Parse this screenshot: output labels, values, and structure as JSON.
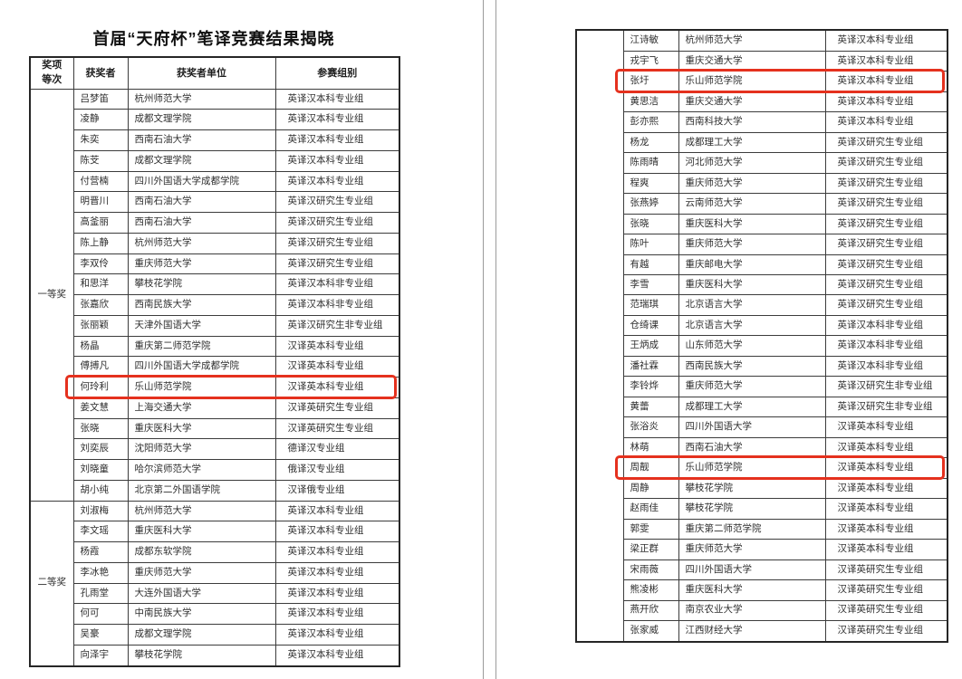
{
  "highlight_color": "#e5311e",
  "page1": {
    "title": "首届“天府杯”笔译竞赛结果揭晓",
    "headers": {
      "award": "奖项\n等次",
      "winner": "获奖者",
      "org": "获奖者单位",
      "group": "参赛组别"
    },
    "sections": [
      {
        "award": "一等奖",
        "rows": [
          {
            "name": "吕梦笛",
            "org": "杭州师范大学",
            "group": "英译汉本科专业组"
          },
          {
            "name": "凌静",
            "org": "成都文理学院",
            "group": "英译汉本科专业组"
          },
          {
            "name": "朱奕",
            "org": "西南石油大学",
            "group": "英译汉本科专业组"
          },
          {
            "name": "陈芠",
            "org": "成都文理学院",
            "group": "英译汉本科专业组"
          },
          {
            "name": "付营楠",
            "org": "四川外国语大学成都学院",
            "group": "英译汉本科专业组"
          },
          {
            "name": "明晋川",
            "org": "西南石油大学",
            "group": "英译汉研究生专业组"
          },
          {
            "name": "高釜丽",
            "org": "西南石油大学",
            "group": "英译汉研究生专业组"
          },
          {
            "name": "陈上静",
            "org": "杭州师范大学",
            "group": "英译汉研究生专业组"
          },
          {
            "name": "李双伶",
            "org": "重庆师范大学",
            "group": "英译汉研究生专业组"
          },
          {
            "name": "和思洋",
            "org": "攀枝花学院",
            "group": "英译汉本科非专业组"
          },
          {
            "name": "张嘉欣",
            "org": "西南民族大学",
            "group": "英译汉本科非专业组"
          },
          {
            "name": "张丽颖",
            "org": "天津外国语大学",
            "group": "英译汉研究生非专业组"
          },
          {
            "name": "杨晶",
            "org": "重庆第二师范学院",
            "group": "汉译英本科专业组"
          },
          {
            "name": "傅搏凡",
            "org": "四川外国语大学成都学院",
            "group": "汉译英本科专业组"
          },
          {
            "name": "何玲利",
            "org": "乐山师范学院",
            "group": "汉译英本科专业组",
            "highlight": true
          },
          {
            "name": "姜文慧",
            "org": "上海交通大学",
            "group": "汉译英研究生专业组"
          },
          {
            "name": "张晓",
            "org": "重庆医科大学",
            "group": "汉译英研究生专业组"
          },
          {
            "name": "刘奕辰",
            "org": "沈阳师范大学",
            "group": "德译汉专业组"
          },
          {
            "name": "刘晓童",
            "org": "哈尔滨师范大学",
            "group": "俄译汉专业组"
          },
          {
            "name": "胡小纯",
            "org": "北京第二外国语学院",
            "group": "汉译俄专业组"
          }
        ]
      },
      {
        "award": "二等奖",
        "rows": [
          {
            "name": "刘淑梅",
            "org": "杭州师范大学",
            "group": "英译汉本科专业组"
          },
          {
            "name": "李文瑶",
            "org": "重庆医科大学",
            "group": "英译汉本科专业组"
          },
          {
            "name": "杨霞",
            "org": "成都东软学院",
            "group": "英译汉本科专业组"
          },
          {
            "name": "李冰艳",
            "org": "重庆师范大学",
            "group": "英译汉本科专业组"
          },
          {
            "name": "孔雨堂",
            "org": "大连外国语大学",
            "group": "英译汉本科专业组"
          },
          {
            "name": "何可",
            "org": "中南民族大学",
            "group": "英译汉本科专业组"
          },
          {
            "name": "吴豪",
            "org": "成都文理学院",
            "group": "英译汉本科专业组"
          },
          {
            "name": "向泽宇",
            "org": "攀枝花学院",
            "group": "英译汉本科专业组"
          }
        ]
      }
    ]
  },
  "page2": {
    "sections": [
      {
        "award": "",
        "rows": [
          {
            "name": "江诗敏",
            "org": "杭州师范大学",
            "group": "英译汉本科专业组"
          },
          {
            "name": "戎宇飞",
            "org": "重庆交通大学",
            "group": "英译汉本科专业组"
          },
          {
            "name": "张圩",
            "org": "乐山师范学院",
            "group": "英译汉本科专业组",
            "highlight": true
          },
          {
            "name": "黄思洁",
            "org": "重庆交通大学",
            "group": "英译汉本科专业组"
          },
          {
            "name": "彭亦熙",
            "org": "西南科技大学",
            "group": "英译汉本科专业组"
          },
          {
            "name": "杨龙",
            "org": "成都理工大学",
            "group": "英译汉研究生专业组"
          },
          {
            "name": "陈雨晴",
            "org": "河北师范大学",
            "group": "英译汉研究生专业组"
          },
          {
            "name": "程爽",
            "org": "重庆师范大学",
            "group": "英译汉研究生专业组"
          },
          {
            "name": "张燕婷",
            "org": "云南师范大学",
            "group": "英译汉研究生专业组"
          },
          {
            "name": "张晓",
            "org": "重庆医科大学",
            "group": "英译汉研究生专业组"
          },
          {
            "name": "陈叶",
            "org": "重庆师范大学",
            "group": "英译汉研究生专业组"
          },
          {
            "name": "有越",
            "org": "重庆邮电大学",
            "group": "英译汉研究生专业组"
          },
          {
            "name": "李雪",
            "org": "重庆医科大学",
            "group": "英译汉研究生专业组"
          },
          {
            "name": "范瑞琪",
            "org": "北京语言大学",
            "group": "英译汉研究生专业组"
          },
          {
            "name": "仓绮课",
            "org": "北京语言大学",
            "group": "英译汉本科非专业组"
          },
          {
            "name": "王炳成",
            "org": "山东师范大学",
            "group": "英译汉本科非专业组"
          },
          {
            "name": "潘社霖",
            "org": "西南民族大学",
            "group": "英译汉本科非专业组"
          },
          {
            "name": "李铃烨",
            "org": "重庆师范大学",
            "group": "英译汉研究生非专业组"
          },
          {
            "name": "黄蕾",
            "org": "成都理工大学",
            "group": "英译汉研究生非专业组"
          },
          {
            "name": "张浴炎",
            "org": "四川外国语大学",
            "group": "汉译英本科专业组"
          },
          {
            "name": "林萌",
            "org": "西南石油大学",
            "group": "汉译英本科专业组"
          },
          {
            "name": "周靓",
            "org": "乐山师范学院",
            "group": "汉译英本科专业组",
            "highlight": true
          },
          {
            "name": "周静",
            "org": "攀枝花学院",
            "group": "汉译英本科专业组"
          },
          {
            "name": "赵雨佳",
            "org": "攀枝花学院",
            "group": "汉译英本科专业组"
          },
          {
            "name": "郭雯",
            "org": "重庆第二师范学院",
            "group": "汉译英本科专业组"
          },
          {
            "name": "梁正群",
            "org": "重庆师范大学",
            "group": "汉译英本科专业组"
          },
          {
            "name": "宋雨薇",
            "org": "四川外国语大学",
            "group": "汉译英研究生专业组"
          },
          {
            "name": "熊凌彬",
            "org": "重庆医科大学",
            "group": "汉译英研究生专业组"
          },
          {
            "name": "燕开欣",
            "org": "南京农业大学",
            "group": "汉译英研究生专业组"
          },
          {
            "name": "张家威",
            "org": "江西财经大学",
            "group": "汉译英研究生专业组"
          }
        ]
      }
    ]
  }
}
